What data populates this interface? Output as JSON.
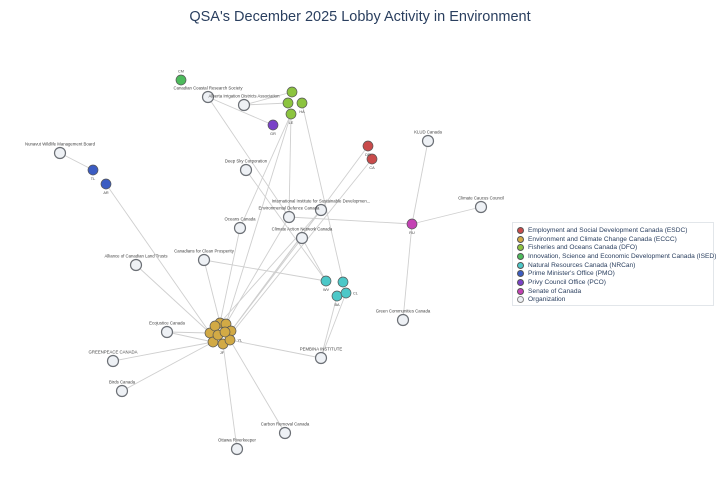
{
  "title": "QSA's December 2025 Lobby Activity in Environment",
  "groups": [
    {
      "key": "esdc",
      "label": "Employment and Social Development Canada (ESDC)",
      "color": "#c94b4b"
    },
    {
      "key": "eccc",
      "label": "Environment and Climate Change Canada (ECCC)",
      "color": "#d2aa45"
    },
    {
      "key": "dfo",
      "label": "Fisheries and Oceans Canada (DFO)",
      "color": "#8cc43f"
    },
    {
      "key": "ised",
      "label": "Innovation, Science and Economic Development Canada (ISED)",
      "color": "#4dbb5c"
    },
    {
      "key": "nrcan",
      "label": "Natural Resources Canada (NRCan)",
      "color": "#4cc8c8"
    },
    {
      "key": "pmo",
      "label": "Prime Minister's Office (PMO)",
      "color": "#3b5cc2"
    },
    {
      "key": "pco",
      "label": "Privy Council Office (PCO)",
      "color": "#7a42c8"
    },
    {
      "key": "senate",
      "label": "Senate of Canada",
      "color": "#c442b4"
    },
    {
      "key": "org",
      "label": "Organization",
      "color": "#eef1f5"
    }
  ],
  "nodes": [
    {
      "id": "ccrs",
      "label": "Canadian Coastal Research Society",
      "group": "org"
    },
    {
      "id": "aida",
      "label": "Alberta Irrigation Districts Association",
      "group": "org"
    },
    {
      "id": "nwmb",
      "label": "Nunavut Wildlife Management Board",
      "group": "org"
    },
    {
      "id": "deepsky",
      "label": "Deep Sky Corporation",
      "group": "org"
    },
    {
      "id": "iisd",
      "label": "International Institute for Sustainable Developmen...",
      "group": "org"
    },
    {
      "id": "edc",
      "label": "Environmental Defence Canada",
      "group": "org"
    },
    {
      "id": "oceans",
      "label": "Oceans Canada",
      "group": "org"
    },
    {
      "id": "can",
      "label": "Climate Action Network Canada",
      "group": "org"
    },
    {
      "id": "ccp",
      "label": "Canadians for Clean Prosperity",
      "group": "org"
    },
    {
      "id": "aclt",
      "label": "Alliance of Canadian Land Trusts",
      "group": "org"
    },
    {
      "id": "eco",
      "label": "Ecojustice Canada",
      "group": "org"
    },
    {
      "id": "gp",
      "label": "GREENPEACE CANADA",
      "group": "org"
    },
    {
      "id": "birds",
      "label": "Birds Canada",
      "group": "org"
    },
    {
      "id": "pembina",
      "label": "PEMBINA INSTITUTE",
      "group": "org"
    },
    {
      "id": "crc",
      "label": "Carbon Removal Canada",
      "group": "org"
    },
    {
      "id": "ork",
      "label": "Ottawa Riverkeeper",
      "group": "org"
    },
    {
      "id": "klud",
      "label": "KLUD Canada",
      "group": "org"
    },
    {
      "id": "ccc",
      "label": "Climate Caucus Council",
      "group": "org"
    },
    {
      "id": "gcc",
      "label": "Green Communities Canada",
      "group": "org"
    },
    {
      "id": "ised1",
      "label": "CM",
      "group": "ised"
    },
    {
      "id": "dfo1",
      "label": "",
      "group": "dfo"
    },
    {
      "id": "dfo2",
      "label": "",
      "group": "dfo"
    },
    {
      "id": "dfo3",
      "label": "HA",
      "group": "dfo"
    },
    {
      "id": "dfo4",
      "label": "LE",
      "group": "dfo"
    },
    {
      "id": "pco1",
      "label": "GR",
      "group": "pco"
    },
    {
      "id": "pmo1",
      "label": "TL",
      "group": "pmo"
    },
    {
      "id": "pmo2",
      "label": "AR",
      "group": "pmo"
    },
    {
      "id": "esdc1",
      "label": "DR",
      "group": "esdc"
    },
    {
      "id": "esdc2",
      "label": "CA",
      "group": "esdc"
    },
    {
      "id": "sen1",
      "label": "RU",
      "group": "senate"
    },
    {
      "id": "nr1",
      "label": "WV",
      "group": "nrcan"
    },
    {
      "id": "nr2",
      "label": "",
      "group": "nrcan"
    },
    {
      "id": "nr3",
      "label": "BA",
      "group": "nrcan"
    },
    {
      "id": "nr4",
      "label": "CL",
      "group": "nrcan"
    },
    {
      "id": "ec1",
      "label": "",
      "group": "eccc"
    },
    {
      "id": "ec2",
      "label": "",
      "group": "eccc"
    },
    {
      "id": "ec3",
      "label": "",
      "group": "eccc"
    },
    {
      "id": "ec4",
      "label": "",
      "group": "eccc"
    },
    {
      "id": "ec5",
      "label": "JF",
      "group": "eccc"
    },
    {
      "id": "ec6",
      "label": "YL",
      "group": "eccc"
    },
    {
      "id": "ec7",
      "label": "",
      "group": "eccc"
    },
    {
      "id": "ec8",
      "label": "",
      "group": "eccc"
    },
    {
      "id": "ec9",
      "label": "",
      "group": "eccc"
    },
    {
      "id": "ec10",
      "label": "",
      "group": "eccc"
    }
  ],
  "edges": [
    [
      "ccrs",
      "pco1"
    ],
    [
      "aida",
      "dfo1"
    ],
    [
      "aida",
      "dfo2"
    ],
    [
      "ccrs",
      "edc"
    ],
    [
      "nwmb",
      "pmo1"
    ],
    [
      "pmo2",
      "ec2"
    ],
    [
      "dfo4",
      "ec3"
    ],
    [
      "dfo4",
      "edc"
    ],
    [
      "dfo3",
      "nr2"
    ],
    [
      "dfo4",
      "oceans"
    ],
    [
      "deepsky",
      "nr1"
    ],
    [
      "esdc1",
      "ec4"
    ],
    [
      "esdc2",
      "ec5"
    ],
    [
      "iisd",
      "ec4"
    ],
    [
      "edc",
      "sen1"
    ],
    [
      "klud",
      "sen1"
    ],
    [
      "ccc",
      "sen1"
    ],
    [
      "gcc",
      "sen1"
    ],
    [
      "can",
      "nr1"
    ],
    [
      "can",
      "ec4"
    ],
    [
      "ccp",
      "nr1"
    ],
    [
      "ccp",
      "ec1"
    ],
    [
      "oceans",
      "ec1"
    ],
    [
      "edc",
      "ec3"
    ],
    [
      "aclt",
      "ec2"
    ],
    [
      "eco",
      "ec2"
    ],
    [
      "eco",
      "ec8"
    ],
    [
      "gp",
      "ec8"
    ],
    [
      "birds",
      "ec8"
    ],
    [
      "pembina",
      "ec6"
    ],
    [
      "pembina",
      "nr3"
    ],
    [
      "pembina",
      "nr4"
    ],
    [
      "crc",
      "ec6"
    ],
    [
      "ork",
      "ec5"
    ],
    [
      "iisd",
      "ec1"
    ]
  ]
}
